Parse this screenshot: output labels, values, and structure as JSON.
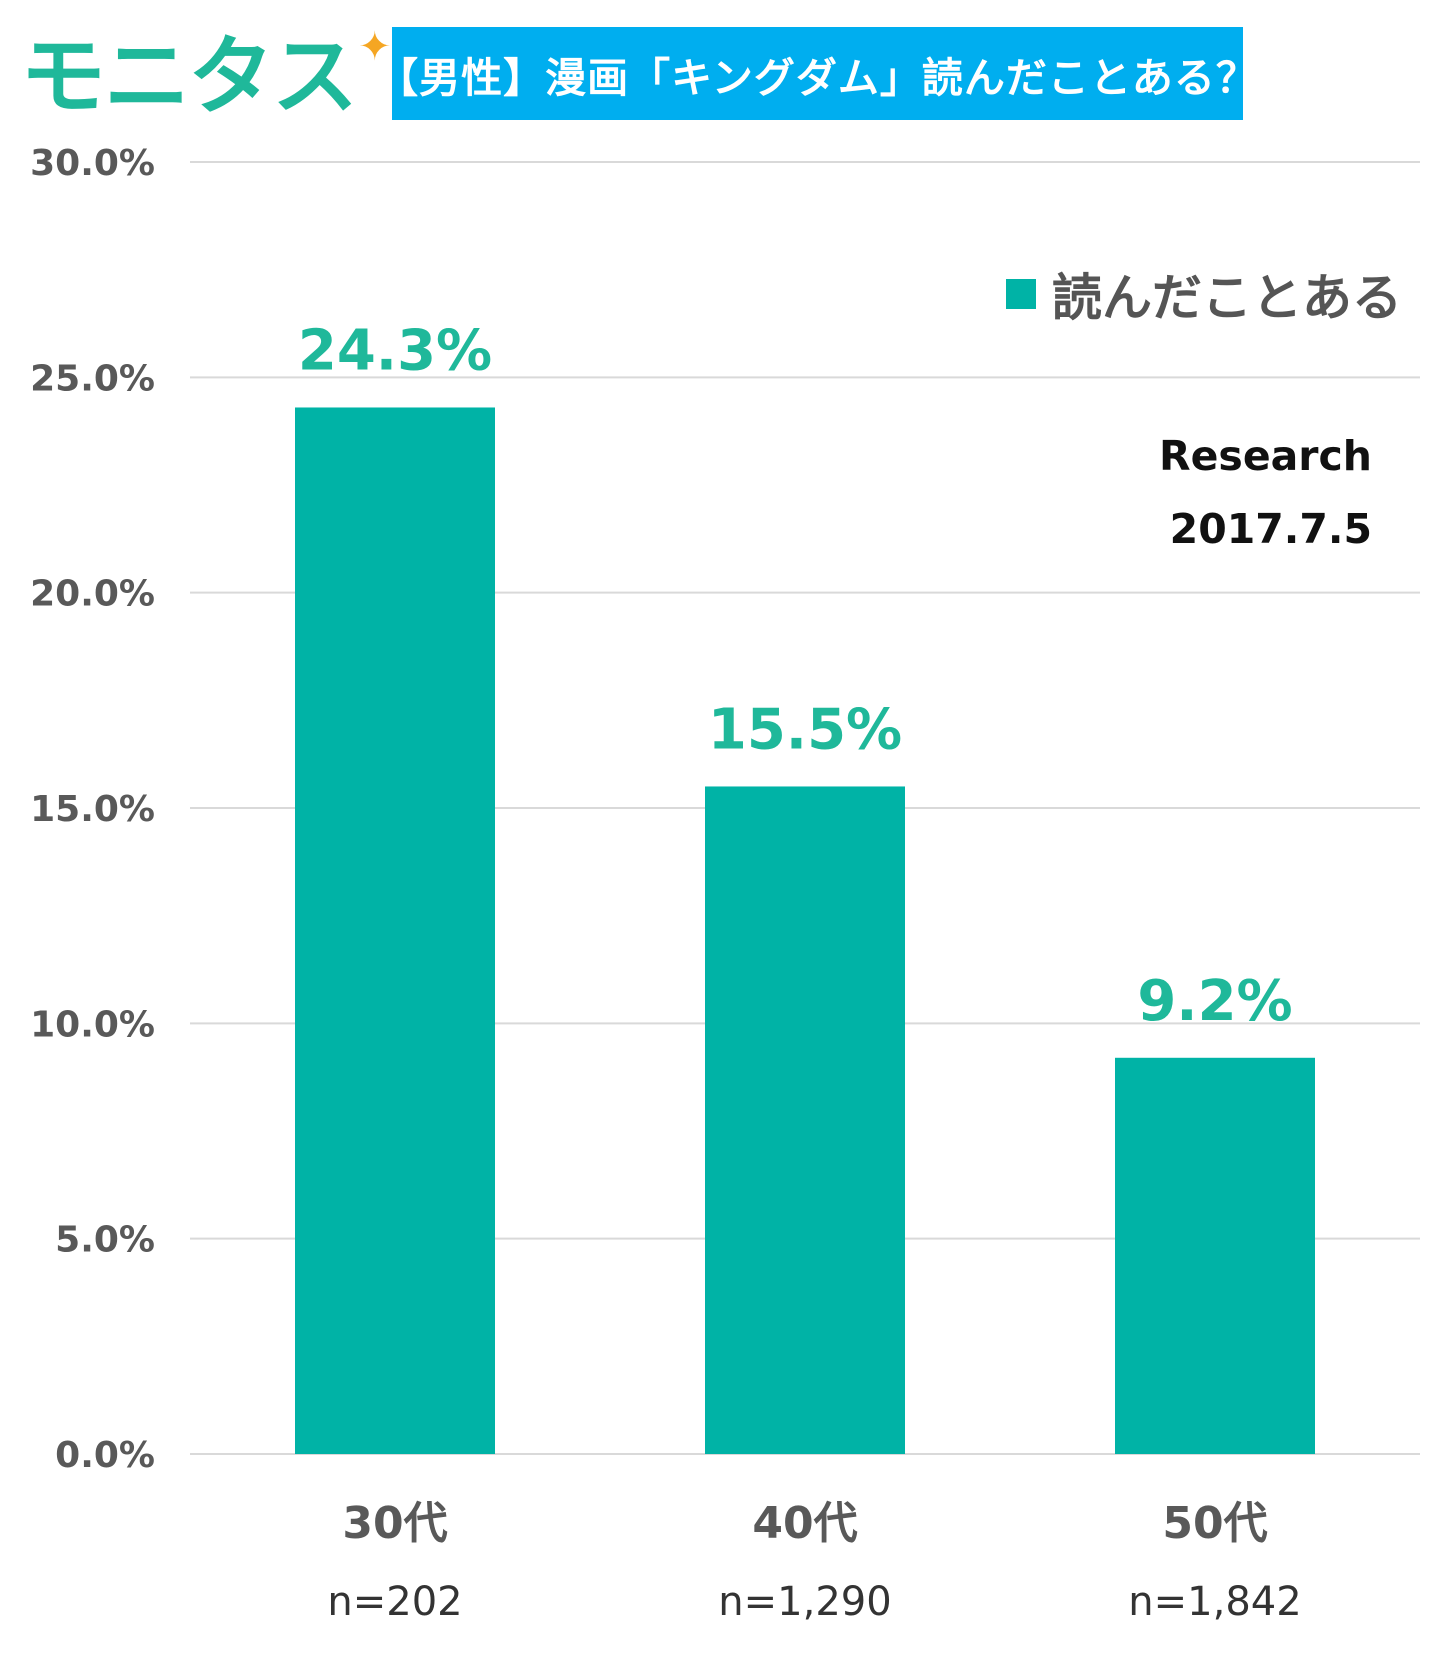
{
  "logo": {
    "text": "モニタス",
    "star": "✦",
    "text_color": "#1fb89a",
    "star_color": "#f5a623"
  },
  "title": {
    "text": "【男性】漫画「キングダム」読んだことある？",
    "bg_color": "#00aeef"
  },
  "legend": {
    "label": "読んだことある"
  },
  "research": {
    "line1": "Research",
    "line2": "2017.7.5"
  },
  "colors": {
    "bar": "#00b3a6",
    "value_label": "#1fb89a",
    "axis_text": "#595959",
    "grid": "#d9d9d9"
  },
  "chart_data": {
    "type": "bar",
    "categories": [
      "30代",
      "40代",
      "50代"
    ],
    "sample_sizes": [
      "n=202",
      "n=1,290",
      "n=1,842"
    ],
    "series": [
      {
        "name": "読んだことある",
        "values": [
          24.3,
          15.5,
          9.2
        ]
      }
    ],
    "value_labels": [
      "24.3%",
      "15.5%",
      "9.2%"
    ],
    "ylim": [
      0,
      30
    ],
    "yticks": [
      0,
      5,
      10,
      15,
      20,
      25,
      30
    ],
    "ytick_labels": [
      "0.0%",
      "5.0%",
      "10.0%",
      "15.0%",
      "20.0%",
      "25.0%",
      "30.0%"
    ],
    "grid": true,
    "legend_position": "top-right",
    "title": "【男性】漫画「キングダム」読んだことある？",
    "xlabel": "",
    "ylabel": ""
  }
}
